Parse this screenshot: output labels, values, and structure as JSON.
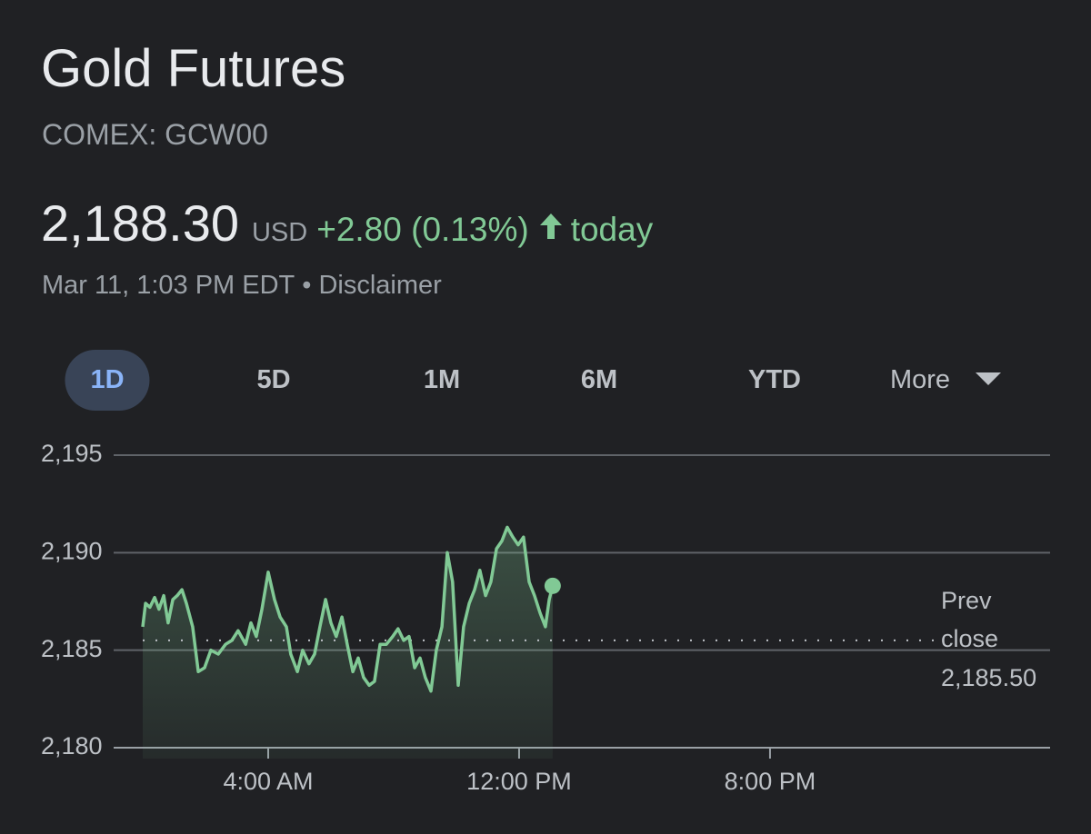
{
  "header": {
    "title": "Gold Futures",
    "ticker": "COMEX: GCW00",
    "price": "2,188.30",
    "currency": "USD",
    "change": "+2.80 (0.13%)",
    "change_period": "today",
    "timestamp": "Mar 11, 1:03 PM EDT",
    "separator": "•",
    "disclaimer": "Disclaimer"
  },
  "tabs": {
    "items": [
      "1D",
      "5D",
      "1M",
      "6M",
      "YTD",
      "More"
    ],
    "active": 0
  },
  "chart_data": {
    "type": "line",
    "color": "#81c995",
    "x": [
      0,
      0.09,
      0.23,
      0.38,
      0.52,
      0.67,
      0.81,
      0.96,
      1.1,
      1.25,
      1.39,
      1.59,
      1.77,
      1.97,
      2.17,
      2.41,
      2.64,
      2.84,
      3.04,
      3.28,
      3.45,
      3.62,
      3.8,
      4.0,
      4.2,
      4.38,
      4.58,
      4.72,
      4.93,
      5.1,
      5.3,
      5.48,
      5.65,
      5.83,
      6.0,
      6.17,
      6.35,
      6.52,
      6.7,
      6.87,
      7.04,
      7.22,
      7.39,
      7.57,
      7.77,
      7.97,
      8.14,
      8.32,
      8.49,
      8.67,
      8.84,
      9.01,
      9.19,
      9.36,
      9.54,
      9.71,
      9.88,
      10.06,
      10.23,
      10.41,
      10.58,
      10.75,
      10.93,
      11.1,
      11.28,
      11.45,
      11.62,
      11.8,
      11.97,
      12.14,
      12.32,
      12.49,
      12.67,
      12.84,
      12.96,
      13.07
    ],
    "values": [
      2186.2,
      2187.4,
      2187.2,
      2187.7,
      2187.1,
      2187.8,
      2186.4,
      2187.6,
      2187.8,
      2188.1,
      2187.4,
      2186.2,
      2183.9,
      2184.1,
      2185.0,
      2184.8,
      2185.3,
      2185.5,
      2186.0,
      2185.3,
      2186.4,
      2185.7,
      2187.1,
      2189.0,
      2187.6,
      2186.7,
      2186.2,
      2184.8,
      2183.9,
      2185.0,
      2184.3,
      2184.8,
      2186.2,
      2187.6,
      2186.4,
      2185.7,
      2186.7,
      2185.3,
      2183.9,
      2184.6,
      2183.6,
      2183.2,
      2183.4,
      2185.3,
      2185.3,
      2185.7,
      2186.1,
      2185.5,
      2185.7,
      2184.1,
      2184.6,
      2183.6,
      2182.9,
      2185.0,
      2186.2,
      2190.0,
      2188.5,
      2183.2,
      2186.2,
      2187.4,
      2188.1,
      2189.1,
      2187.8,
      2188.5,
      2190.2,
      2190.6,
      2191.3,
      2190.8,
      2190.4,
      2190.8,
      2188.5,
      2187.8,
      2186.9,
      2186.2,
      2187.6,
      2188.3
    ],
    "xlim": [
      0,
      28.93
    ],
    "xticks": [
      {
        "value": 4,
        "label": "4:00 AM"
      },
      {
        "value": 12,
        "label": "12:00 PM"
      },
      {
        "value": 20,
        "label": "8:00 PM"
      }
    ],
    "ylim": [
      2180,
      2195
    ],
    "yticks": [
      {
        "value": 2180,
        "label": "2,180"
      },
      {
        "value": 2185,
        "label": "2,185"
      },
      {
        "value": 2190,
        "label": "2,190"
      },
      {
        "value": 2195,
        "label": "2,195"
      }
    ],
    "grid": true,
    "prev_close": 2185.5,
    "prev_close_title": [
      "Prev",
      "close"
    ],
    "prev_close_label": "2,185.50"
  }
}
